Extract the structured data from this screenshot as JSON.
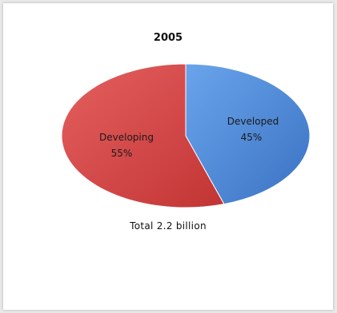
{
  "chart_data": {
    "type": "pie",
    "title": "2005",
    "slices": [
      {
        "label": "Developed",
        "value": 45,
        "value_label": "45%",
        "color": "#4d8ad9"
      },
      {
        "label": "Developing",
        "value": 55,
        "value_label": "55%",
        "color": "#d94848"
      }
    ],
    "footnote": "Total  2.2 billion"
  }
}
